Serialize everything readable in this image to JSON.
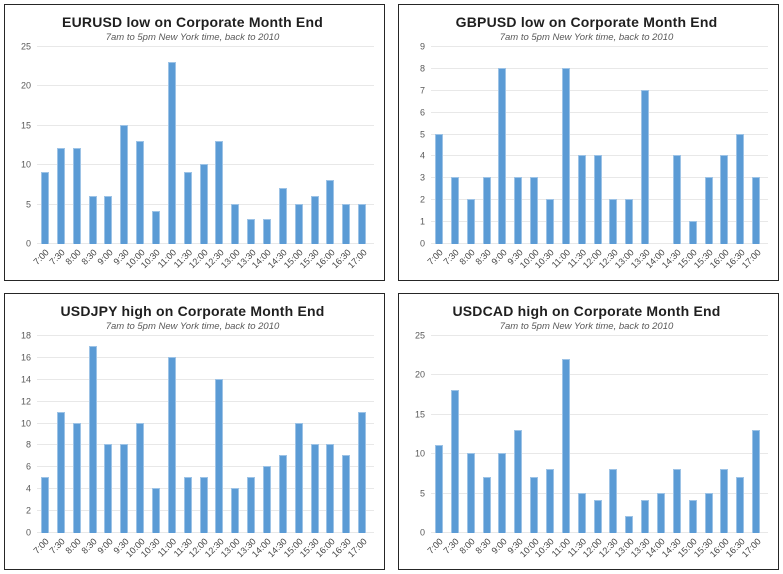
{
  "colors": {
    "bar_fill": "#5B9BD5",
    "bar_edge": "#9DC3E6",
    "gridline": "#E8E8E8",
    "axis_text": "#595959",
    "title_text": "#1F1F1F",
    "panel_border": "#262626",
    "background": "#FFFFFF"
  },
  "chart_data": [
    {
      "type": "bar",
      "title": "EURUSD low on Corporate Month End",
      "subtitle": "7am to 5pm New York time, back to 2010",
      "xlabel": "",
      "ylabel": "",
      "grid": true,
      "legend": false,
      "ylim": [
        0,
        25
      ],
      "yticks": [
        0,
        5,
        10,
        15,
        20,
        25
      ],
      "categories": [
        "7:00",
        "7:30",
        "8:00",
        "8:30",
        "9:00",
        "9:30",
        "10:00",
        "10:30",
        "11:00",
        "11:30",
        "12:00",
        "12:30",
        "13:00",
        "13:30",
        "14:00",
        "14:30",
        "15:00",
        "15:30",
        "16:00",
        "16:30",
        "17:00"
      ],
      "values": [
        9,
        12,
        12,
        6,
        6,
        15,
        13,
        4,
        23,
        9,
        10,
        13,
        5,
        3,
        3,
        7,
        5,
        6,
        8,
        5,
        5
      ]
    },
    {
      "type": "bar",
      "title": "GBPUSD low on Corporate Month End",
      "subtitle": "7am to 5pm New York time, back to 2010",
      "xlabel": "",
      "ylabel": "",
      "grid": true,
      "legend": false,
      "ylim": [
        0,
        9
      ],
      "yticks": [
        0,
        1,
        2,
        3,
        4,
        5,
        6,
        7,
        8,
        9
      ],
      "categories": [
        "7:00",
        "7:30",
        "8:00",
        "8:30",
        "9:00",
        "9:30",
        "10:00",
        "10:30",
        "11:00",
        "11:30",
        "12:00",
        "12:30",
        "13:00",
        "13:30",
        "14:00",
        "14:30",
        "15:00",
        "15:30",
        "16:00",
        "16:30",
        "17:00"
      ],
      "values": [
        5,
        3,
        2,
        3,
        8,
        3,
        3,
        2,
        8,
        4,
        4,
        2,
        2,
        7,
        0,
        4,
        1,
        3,
        4,
        5,
        3
      ]
    },
    {
      "type": "bar",
      "title": "USDJPY high on Corporate Month End",
      "subtitle": "7am to 5pm New York time, back to 2010",
      "xlabel": "",
      "ylabel": "",
      "grid": true,
      "legend": false,
      "ylim": [
        0,
        18
      ],
      "yticks": [
        0,
        2,
        4,
        6,
        8,
        10,
        12,
        14,
        16,
        18
      ],
      "categories": [
        "7:00",
        "7:30",
        "8:00",
        "8:30",
        "9:00",
        "9:30",
        "10:00",
        "10:30",
        "11:00",
        "11:30",
        "12:00",
        "12:30",
        "13:00",
        "13:30",
        "14:00",
        "14:30",
        "15:00",
        "15:30",
        "16:00",
        "16:30",
        "17:00"
      ],
      "values": [
        5,
        11,
        10,
        17,
        8,
        8,
        10,
        4,
        16,
        5,
        5,
        14,
        4,
        5,
        6,
        7,
        10,
        8,
        8,
        7,
        11
      ]
    },
    {
      "type": "bar",
      "title": "USDCAD high on Corporate Month End",
      "subtitle": "7am to 5pm New York time, back to 2010",
      "xlabel": "",
      "ylabel": "",
      "grid": true,
      "legend": false,
      "ylim": [
        0,
        25
      ],
      "yticks": [
        0,
        5,
        10,
        15,
        20,
        25
      ],
      "categories": [
        "7:00",
        "7:30",
        "8:00",
        "8:30",
        "9:00",
        "9:30",
        "10:00",
        "10:30",
        "11:00",
        "11:30",
        "12:00",
        "12:30",
        "13:00",
        "13:30",
        "14:00",
        "14:30",
        "15:00",
        "15:30",
        "16:00",
        "16:30",
        "17:00"
      ],
      "values": [
        11,
        18,
        10,
        7,
        10,
        13,
        7,
        8,
        22,
        5,
        4,
        8,
        2,
        4,
        5,
        8,
        4,
        5,
        8,
        7,
        13
      ]
    }
  ]
}
